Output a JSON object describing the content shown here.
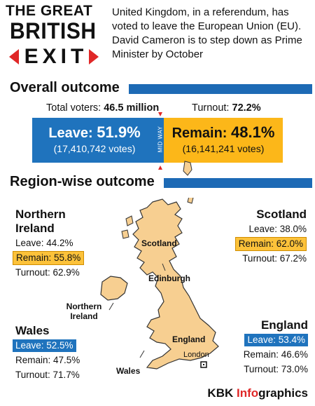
{
  "header": {
    "title_line1": "THE GREAT",
    "title_line2": "BRITISH",
    "title_line3": "EXIT",
    "intro": "United Kingdom, in a referendum, has voted to leave the European Union (EU). David Cameron is to step down as Prime Minister by October"
  },
  "overall": {
    "section_title": "Overall outcome",
    "total_voters_label": "Total voters:",
    "total_voters_value": "46.5 million",
    "turnout_label": "Turnout:",
    "turnout_value": "72.2%",
    "leave_label": "Leave:",
    "leave_pct": "51.9%",
    "leave_votes": "(17,410,742 votes)",
    "remain_label": "Remain:",
    "remain_pct": "48.1%",
    "remain_votes": "(16,141,241 votes)",
    "midway": "MID WAY",
    "leave_fraction": 0.519
  },
  "regions": {
    "section_title": "Region-wise outcome",
    "northern_ireland": {
      "title": "Northern Ireland",
      "leave": "Leave: 44.2%",
      "remain": "Remain: 55.8%",
      "turnout": "Turnout: 62.9%"
    },
    "scotland": {
      "title": "Scotland",
      "leave": "Leave: 38.0%",
      "remain": "Remain: 62.0%",
      "turnout": "Turnout: 67.2%"
    },
    "wales": {
      "title": "Wales",
      "leave": "Leave: 52.5%",
      "remain": "Remain: 47.5%",
      "turnout": "Turnout: 71.7%"
    },
    "england": {
      "title": "England",
      "leave": "Leave: 53.4%",
      "remain": "Remain: 46.6%",
      "turnout": "Turnout: 73.0%"
    }
  },
  "map": {
    "label_scotland": "Scotland",
    "label_edinburgh": "Edinburgh",
    "label_northern_ireland": "Northern Ireland",
    "label_england": "England",
    "label_london": "London",
    "label_wales": "Wales",
    "land_color": "#f7cf91",
    "outline_color": "#333333"
  },
  "footer": {
    "brand": "KBK ",
    "brand_highlight": "Info",
    "brand_rest": "graphics"
  },
  "colors": {
    "leave": "#1f73bd",
    "remain": "#fcb719",
    "accent_red": "#e02727"
  }
}
